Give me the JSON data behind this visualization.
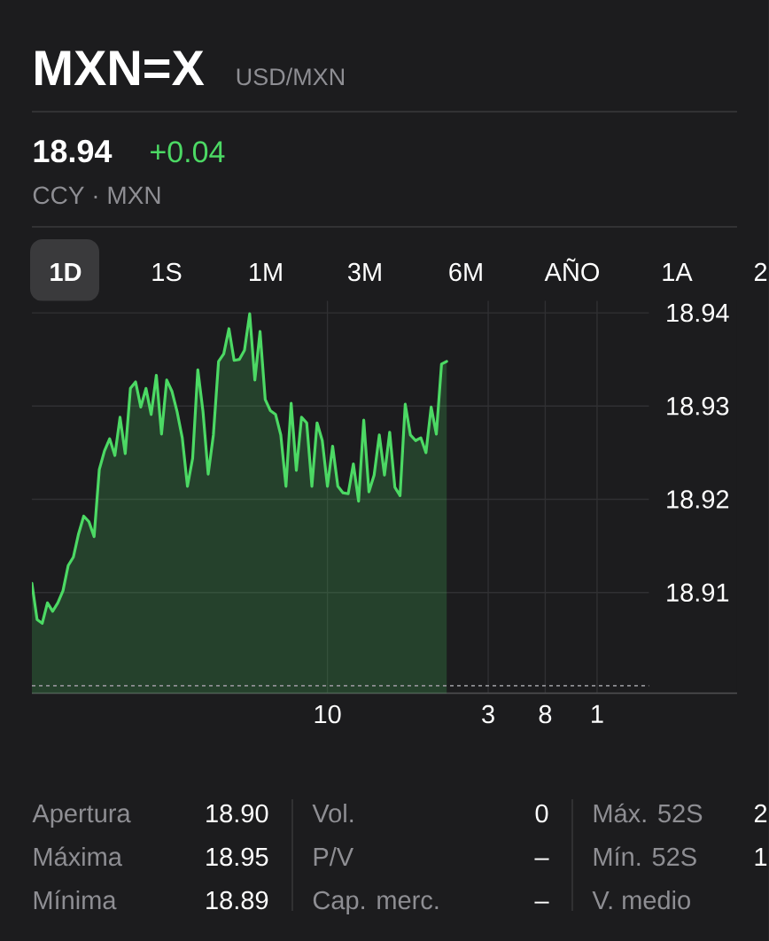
{
  "chart_data": {
    "type": "area",
    "title": "MXN=X",
    "subtitle": "USD/MXN",
    "categories": [
      null,
      null,
      null,
      null,
      null,
      null,
      null,
      null,
      null,
      null,
      null,
      null,
      null,
      null,
      null,
      null,
      null,
      null,
      null,
      null,
      null,
      null,
      null,
      null,
      null,
      null,
      null,
      null,
      null,
      null,
      null,
      null,
      null,
      null,
      null,
      null,
      null,
      null,
      null,
      null,
      null,
      null,
      null,
      null,
      null,
      null,
      null,
      null,
      null,
      null,
      null,
      null,
      null,
      null,
      null,
      null,
      null,
      "10",
      null,
      null,
      null,
      null,
      null,
      null,
      null,
      null,
      null,
      null,
      null,
      null,
      null,
      null,
      null,
      null,
      null,
      null,
      null,
      null,
      null,
      null,
      null,
      null,
      null,
      null,
      null,
      null,
      null,
      null,
      "3",
      null,
      null,
      null,
      null,
      null,
      null,
      null,
      null,
      null,
      null,
      "8",
      null,
      null,
      null,
      null,
      null,
      null,
      null,
      null,
      null,
      "1",
      null,
      null,
      null,
      null,
      null,
      null,
      null,
      null,
      null,
      null,
      null,
      null,
      null,
      null,
      null,
      null,
      null,
      null,
      null,
      null,
      null,
      null,
      null,
      null,
      null,
      null,
      null
    ],
    "values": [
      18.911,
      18.9071,
      18.9067,
      18.9089,
      18.908,
      18.9089,
      18.9102,
      18.9129,
      18.9138,
      18.9163,
      18.9182,
      18.9176,
      18.916,
      18.9232,
      18.9252,
      18.9265,
      18.9247,
      18.9288,
      18.9249,
      18.9319,
      18.9326,
      18.9299,
      18.9319,
      18.9291,
      18.9333,
      18.927,
      18.9328,
      18.9316,
      18.9294,
      18.9266,
      18.9214,
      18.9244,
      18.9339,
      18.9294,
      18.9227,
      18.9269,
      18.9348,
      18.9356,
      18.9383,
      18.9349,
      18.935,
      18.936,
      18.9399,
      18.9328,
      18.938,
      18.9307,
      18.9295,
      18.9291,
      18.9269,
      18.9214,
      18.9303,
      18.9231,
      18.9288,
      18.9282,
      18.9214,
      18.9282,
      18.9263,
      18.9214,
      18.9257,
      18.9214,
      18.9207,
      18.9206,
      18.9238,
      18.9198,
      18.9285,
      18.9208,
      18.9226,
      18.9269,
      18.9226,
      18.9272,
      18.9213,
      18.9204,
      18.9302,
      18.9269,
      18.9263,
      18.9266,
      18.925,
      18.9299,
      18.927,
      18.9345,
      18.9348,
      null,
      null,
      null,
      null,
      null,
      null,
      null,
      null,
      null,
      null,
      null,
      null,
      null,
      null,
      null,
      null,
      null,
      null,
      null,
      null,
      null,
      null,
      null,
      null,
      null,
      null,
      null,
      null,
      null,
      null,
      null,
      null,
      null,
      null,
      null,
      null,
      null,
      null,
      null,
      null,
      null,
      null,
      null,
      null,
      null,
      null,
      null,
      null,
      null,
      null,
      null,
      null,
      null,
      null,
      null,
      null
    ],
    "color": "#4cd964",
    "ylim": [
      18.8992,
      18.9413
    ],
    "yticks": [
      18.91,
      18.92,
      18.93,
      18.94
    ],
    "grid": true,
    "ref_lines": [
      {
        "axis": "y",
        "value": 18.9,
        "color": "#8e8e93",
        "line_style": "dotted"
      }
    ],
    "annotations": [
      "18.94",
      "+0.04",
      "CCY · MXN",
      "1D",
      "1S",
      "1M",
      "3M",
      "6M",
      "AÑO",
      "1A",
      "2",
      "Apertura",
      "18.90",
      "Máxima",
      "18.95",
      "Mínima",
      "18.89",
      "Vol.",
      "0",
      "P/V",
      "–",
      "Cap. merc.",
      "–",
      "Máx. 52S",
      "2",
      "Mín. 52S",
      "1",
      "V. medio"
    ]
  }
}
